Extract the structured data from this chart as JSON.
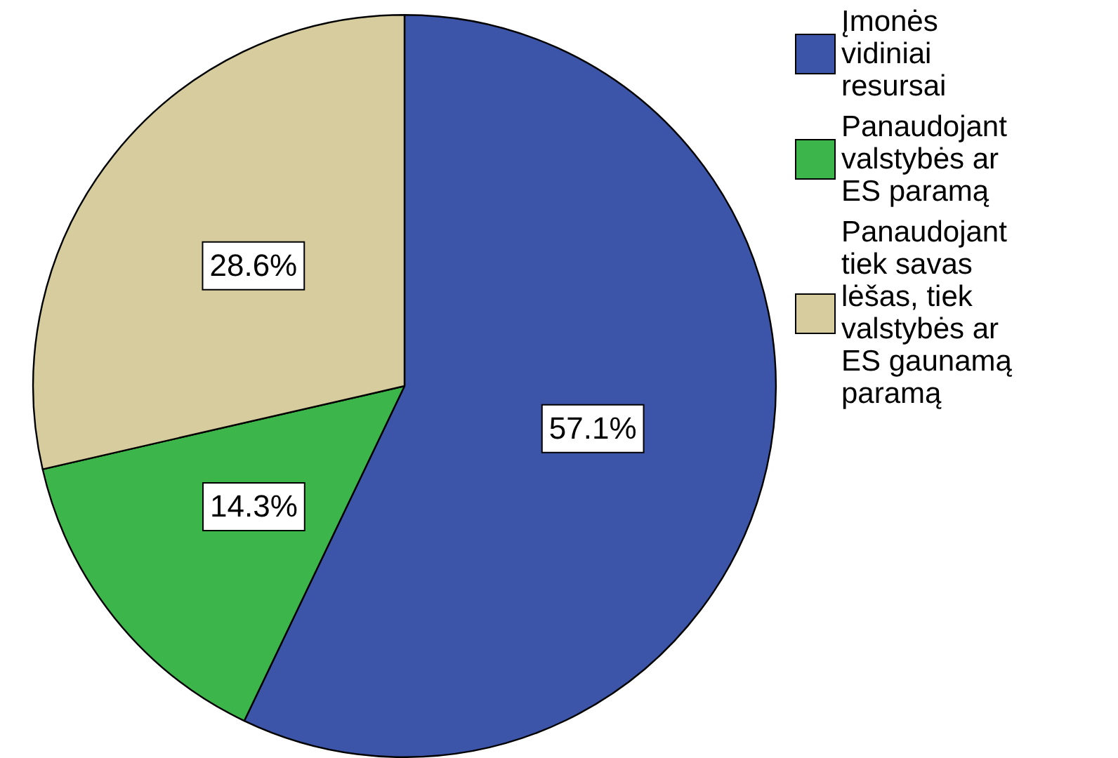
{
  "chart_data": {
    "type": "pie",
    "categories": [
      "Įmonės vidiniai resursai",
      "Panaudojant valstybės ar ES paramą",
      "Panaudojant tiek savas lėšas, tiek valstybės ar ES gaunamą paramą"
    ],
    "values": [
      57.1,
      14.3,
      28.6
    ],
    "colors": [
      "#3d55a8",
      "#3cb64a",
      "#d6cc9d"
    ],
    "value_labels": [
      "57.1%",
      "14.3%",
      "28.6%"
    ],
    "legend": "right"
  }
}
